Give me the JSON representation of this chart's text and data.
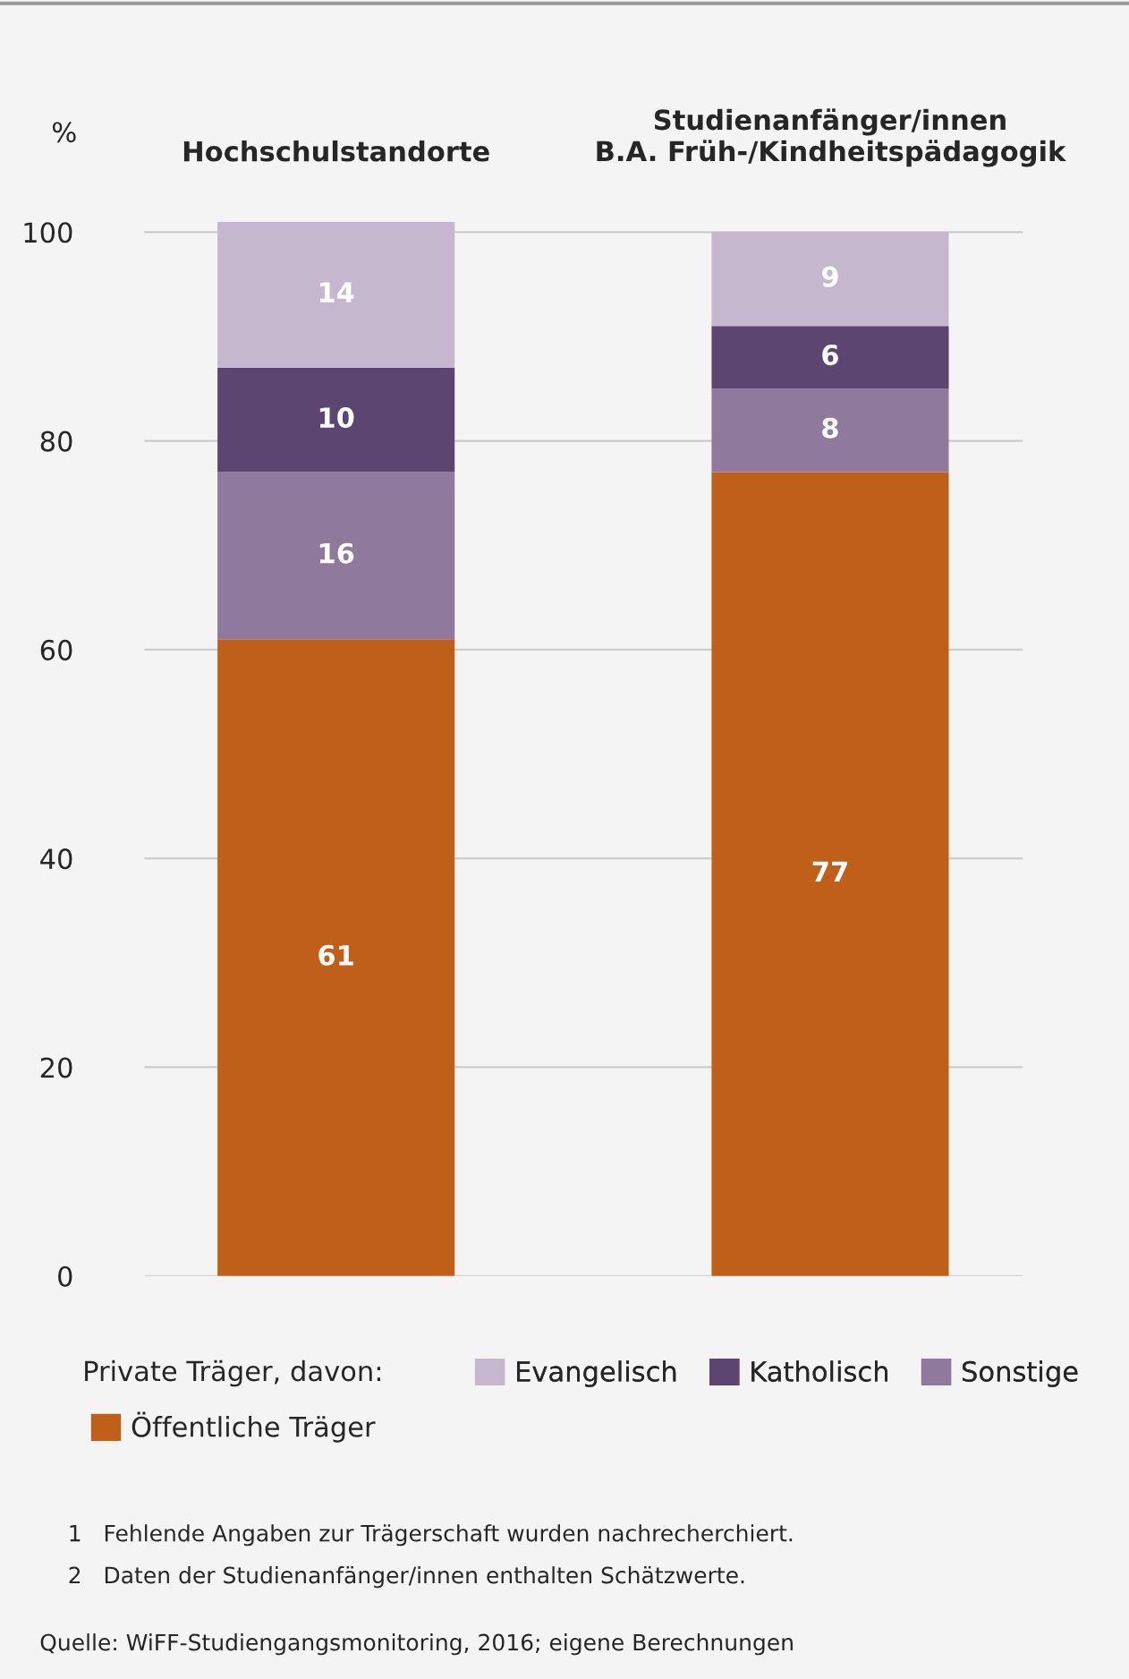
{
  "chart_data": {
    "type": "bar",
    "stacked": true,
    "ylabel": "%",
    "legend_title": "Private Träger, davon:",
    "categories": [
      "Hochschulstandorte",
      "Studienanfänger/innen\nB.A. Früh-/Kindheitspädagogik"
    ],
    "series": [
      {
        "name": "Öffentliche Träger",
        "color": "#c05f1a",
        "values": [
          61,
          77
        ]
      },
      {
        "name": "Sonstige",
        "color": "#8f7a9e",
        "values": [
          16,
          8
        ]
      },
      {
        "name": "Katholisch",
        "color": "#5d4571",
        "values": [
          10,
          6
        ]
      },
      {
        "name": "Evangelisch",
        "color": "#c5b7cd",
        "values": [
          14,
          9
        ]
      }
    ],
    "ylim": [
      0,
      101
    ],
    "yticks": [
      0,
      20,
      40,
      60,
      80,
      100
    ],
    "grid": "y",
    "data_labels": true,
    "legend": "bottom",
    "annotations": [
      "1   Fehlende Angaben zur Trägerschaft wurden nachrecherchiert.",
      "2   Daten der Studienanfänger/innen enthalten Schätzwerte.",
      "Quelle: WiFF-Studiengangsmonitoring, 2016; eigene Berechnungen"
    ]
  }
}
